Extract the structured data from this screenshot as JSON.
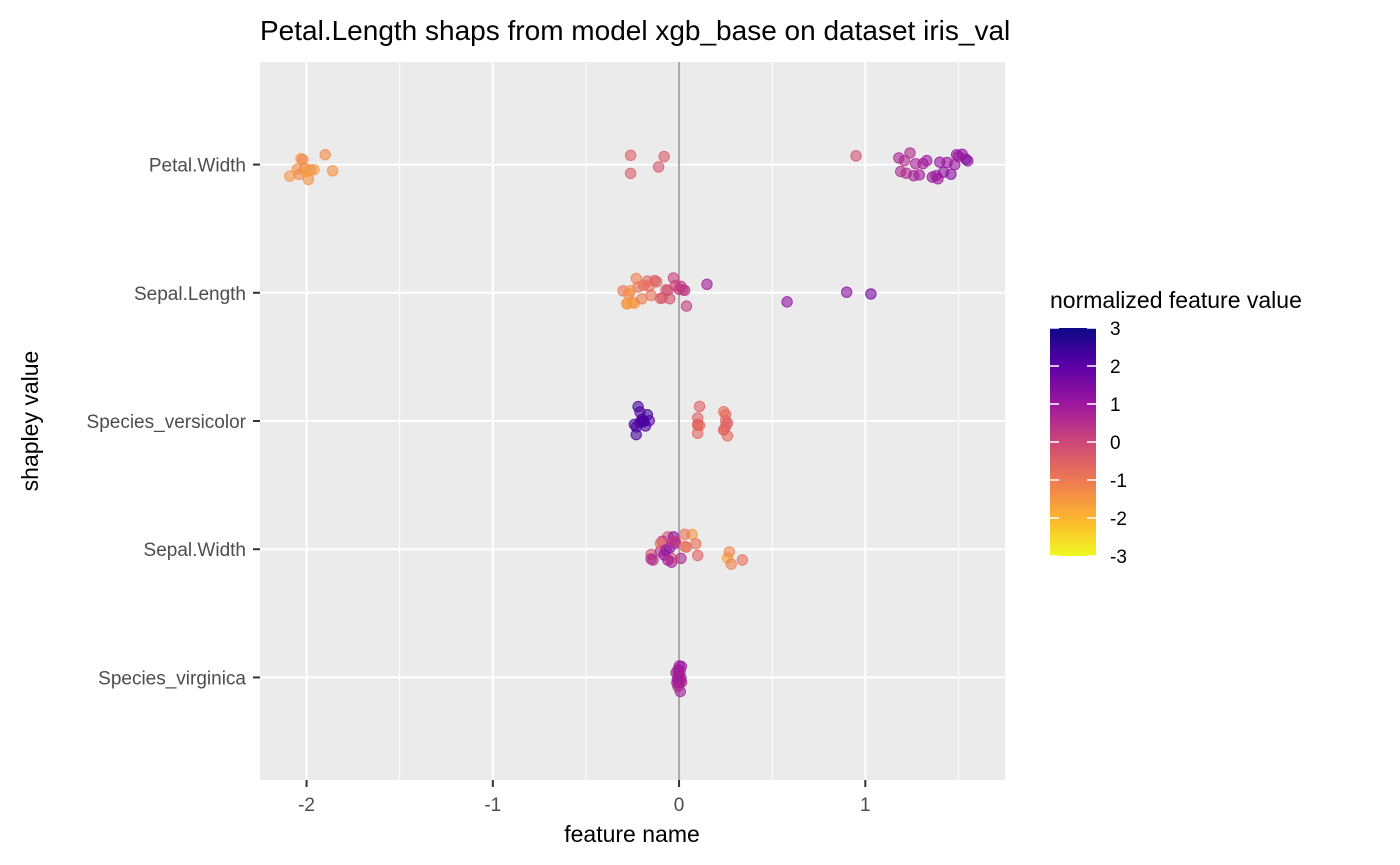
{
  "chart_data": {
    "type": "scatter",
    "title": "Petal.Length shaps from model xgb_base on dataset iris_val",
    "xlabel": "feature name",
    "ylabel": "shapley value",
    "xlim": [
      -2.25,
      1.75
    ],
    "x_ticks": [
      "-2",
      "-1",
      "0",
      "1"
    ],
    "x_tick_values": [
      -2,
      -1,
      0,
      1
    ],
    "categories": [
      "Petal.Width",
      "Sepal.Length",
      "Species_versicolor",
      "Sepal.Width",
      "Species_virginica"
    ],
    "grid": true,
    "reference_line": {
      "x": 0
    },
    "legend": {
      "title": "normalized feature value",
      "labels": [
        "3",
        "2",
        "1",
        "0",
        "-1",
        "-2",
        "-3"
      ],
      "values": [
        3,
        2,
        1,
        0,
        -1,
        -2,
        -3
      ],
      "position": "right",
      "colors": [
        "#f0f921",
        "#fdb42f",
        "#ed7953",
        "#cc4778",
        "#9c179e",
        "#5c01a6",
        "#0d0887"
      ]
    },
    "colors": {
      "panel": "#ebebeb",
      "grid": "#ffffff",
      "reference_line": "#a9a9a9",
      "point_alpha": 0.6
    },
    "series": [
      {
        "category": "Petal.Width",
        "points": [
          {
            "x": -2.05,
            "c": -1.4
          },
          {
            "x": -2.03,
            "c": -1.5
          },
          {
            "x": -2.01,
            "c": -1.3
          },
          {
            "x": -1.99,
            "c": -1.4
          },
          {
            "x": -1.98,
            "c": -1.2
          },
          {
            "x": -1.96,
            "c": -1.5
          },
          {
            "x": -1.9,
            "c": -1.3
          },
          {
            "x": -2.09,
            "c": -1.5
          },
          {
            "x": -1.86,
            "c": -1.4
          },
          {
            "x": -2.04,
            "c": -1.3
          },
          {
            "x": -2.0,
            "c": -1.6
          },
          {
            "x": -2.02,
            "c": -1.2
          },
          {
            "x": -0.26,
            "c": -0.4
          },
          {
            "x": -0.26,
            "c": -0.5
          },
          {
            "x": -0.11,
            "c": -0.3
          },
          {
            "x": -0.08,
            "c": -0.4
          },
          {
            "x": 0.95,
            "c": -0.2
          },
          {
            "x": 1.22,
            "c": 0.5
          },
          {
            "x": 1.26,
            "c": 0.8
          },
          {
            "x": 1.29,
            "c": 0.9
          },
          {
            "x": 1.24,
            "c": 0.6
          },
          {
            "x": 1.27,
            "c": 0.7
          },
          {
            "x": 1.19,
            "c": 0.6
          },
          {
            "x": 1.21,
            "c": 0.5
          },
          {
            "x": 1.18,
            "c": 0.7
          },
          {
            "x": 1.33,
            "c": 1.0
          },
          {
            "x": 1.36,
            "c": 1.1
          },
          {
            "x": 1.38,
            "c": 0.9
          },
          {
            "x": 1.4,
            "c": 1.2
          },
          {
            "x": 1.44,
            "c": 1.0
          },
          {
            "x": 1.46,
            "c": 1.3
          },
          {
            "x": 1.49,
            "c": 1.1
          },
          {
            "x": 1.52,
            "c": 1.2
          },
          {
            "x": 1.54,
            "c": 1.4
          },
          {
            "x": 1.55,
            "c": 1.3
          },
          {
            "x": 1.48,
            "c": 1.1
          },
          {
            "x": 1.39,
            "c": 1.0
          },
          {
            "x": 1.31,
            "c": 0.9
          },
          {
            "x": 1.42,
            "c": 1.2
          },
          {
            "x": 1.5,
            "c": 1.0
          }
        ]
      },
      {
        "category": "Sepal.Length",
        "points": [
          {
            "x": -0.3,
            "c": -0.9
          },
          {
            "x": -0.28,
            "c": -1.6
          },
          {
            "x": -0.25,
            "c": -1.3
          },
          {
            "x": -0.22,
            "c": -0.8
          },
          {
            "x": -0.27,
            "c": -1.2
          },
          {
            "x": -0.24,
            "c": -1.5
          },
          {
            "x": -0.2,
            "c": -1.0
          },
          {
            "x": -0.17,
            "c": -0.7
          },
          {
            "x": -0.15,
            "c": -0.9
          },
          {
            "x": -0.13,
            "c": -0.4
          },
          {
            "x": -0.1,
            "c": -0.6
          },
          {
            "x": -0.07,
            "c": -0.5
          },
          {
            "x": -0.05,
            "c": -0.2
          },
          {
            "x": -0.02,
            "c": 0.0
          },
          {
            "x": 0.0,
            "c": 0.3
          },
          {
            "x": 0.02,
            "c": -0.1
          },
          {
            "x": 0.03,
            "c": 0.4
          },
          {
            "x": 0.04,
            "c": 0.2
          },
          {
            "x": -0.26,
            "c": -1.4
          },
          {
            "x": -0.23,
            "c": -1.1
          },
          {
            "x": -0.19,
            "c": -0.8
          },
          {
            "x": -0.12,
            "c": -0.6
          },
          {
            "x": -0.09,
            "c": -0.3
          },
          {
            "x": -0.03,
            "c": 0.1
          },
          {
            "x": 0.01,
            "c": 0.3
          },
          {
            "x": -0.16,
            "c": -0.7
          },
          {
            "x": -0.06,
            "c": -0.1
          },
          {
            "x": 0.15,
            "c": 0.9
          },
          {
            "x": 0.58,
            "c": 1.2
          },
          {
            "x": 0.9,
            "c": 1.3
          },
          {
            "x": 1.03,
            "c": 1.6
          },
          {
            "x": -0.28,
            "c": -1.5
          }
        ]
      },
      {
        "category": "Species_versicolor",
        "points": [
          {
            "x": -0.24,
            "c": 2.3
          },
          {
            "x": -0.23,
            "c": 2.1
          },
          {
            "x": -0.22,
            "c": 2.4
          },
          {
            "x": -0.21,
            "c": 2.2
          },
          {
            "x": -0.2,
            "c": 2.3
          },
          {
            "x": -0.19,
            "c": 2.1
          },
          {
            "x": -0.18,
            "c": 2.2
          },
          {
            "x": -0.17,
            "c": 2.4
          },
          {
            "x": -0.16,
            "c": 2.0
          },
          {
            "x": -0.23,
            "c": 2.3
          },
          {
            "x": -0.21,
            "c": 2.2
          },
          {
            "x": -0.19,
            "c": 2.3
          },
          {
            "x": 0.1,
            "c": -0.6
          },
          {
            "x": 0.1,
            "c": -0.7
          },
          {
            "x": 0.11,
            "c": -0.5
          },
          {
            "x": 0.1,
            "c": -0.6
          },
          {
            "x": 0.11,
            "c": -0.7
          },
          {
            "x": 0.1,
            "c": -0.5
          },
          {
            "x": 0.24,
            "c": -0.6
          },
          {
            "x": 0.25,
            "c": -0.7
          },
          {
            "x": 0.25,
            "c": -0.5
          },
          {
            "x": 0.24,
            "c": -0.6
          },
          {
            "x": 0.26,
            "c": -0.7
          },
          {
            "x": 0.25,
            "c": -0.6
          },
          {
            "x": 0.24,
            "c": -0.8
          },
          {
            "x": 0.26,
            "c": -0.5
          }
        ]
      },
      {
        "category": "Sepal.Width",
        "points": [
          {
            "x": -0.15,
            "c": -0.3
          },
          {
            "x": -0.14,
            "c": 0.4
          },
          {
            "x": -0.1,
            "c": 0.6
          },
          {
            "x": -0.08,
            "c": 1.0
          },
          {
            "x": -0.06,
            "c": -0.4
          },
          {
            "x": -0.04,
            "c": 0.8
          },
          {
            "x": -0.03,
            "c": 1.3
          },
          {
            "x": -0.02,
            "c": 0.2
          },
          {
            "x": -0.05,
            "c": 1.4
          },
          {
            "x": -0.04,
            "c": -0.2
          },
          {
            "x": -0.02,
            "c": 0.7
          },
          {
            "x": -0.06,
            "c": 0.9
          },
          {
            "x": -0.09,
            "c": 0.5
          },
          {
            "x": 0.01,
            "c": 0.6
          },
          {
            "x": 0.03,
            "c": -1.0
          },
          {
            "x": 0.04,
            "c": -0.7
          },
          {
            "x": 0.07,
            "c": -1.5
          },
          {
            "x": 0.09,
            "c": -0.8
          },
          {
            "x": 0.1,
            "c": -0.5
          },
          {
            "x": -0.15,
            "c": 0.6
          },
          {
            "x": 0.26,
            "c": -1.7
          },
          {
            "x": 0.28,
            "c": -1.1
          },
          {
            "x": 0.27,
            "c": -1.2
          },
          {
            "x": 0.34,
            "c": -0.8
          },
          {
            "x": -0.1,
            "c": -0.8
          },
          {
            "x": 0.03,
            "c": -0.9
          },
          {
            "x": -0.03,
            "c": 0.3
          },
          {
            "x": -0.07,
            "c": 1.1
          }
        ]
      },
      {
        "category": "Species_virginica",
        "points": [
          {
            "x": 0.0,
            "c": -1.2
          },
          {
            "x": 0.0,
            "c": -0.6
          },
          {
            "x": 0.0,
            "c": 0.9
          },
          {
            "x": 0.0,
            "c": 0.8
          },
          {
            "x": 0.0,
            "c": 0.9
          },
          {
            "x": 0.0,
            "c": 1.0
          },
          {
            "x": 0.0,
            "c": 0.7
          },
          {
            "x": 0.0,
            "c": 0.9
          },
          {
            "x": 0.0,
            "c": 0.8
          },
          {
            "x": 0.0,
            "c": 1.0
          },
          {
            "x": 0.0,
            "c": 0.9
          },
          {
            "x": 0.0,
            "c": 0.8
          },
          {
            "x": 0.0,
            "c": 0.7
          },
          {
            "x": 0.0,
            "c": 0.9
          },
          {
            "x": 0.0,
            "c": 1.0
          },
          {
            "x": 0.0,
            "c": 0.8
          }
        ]
      }
    ]
  }
}
